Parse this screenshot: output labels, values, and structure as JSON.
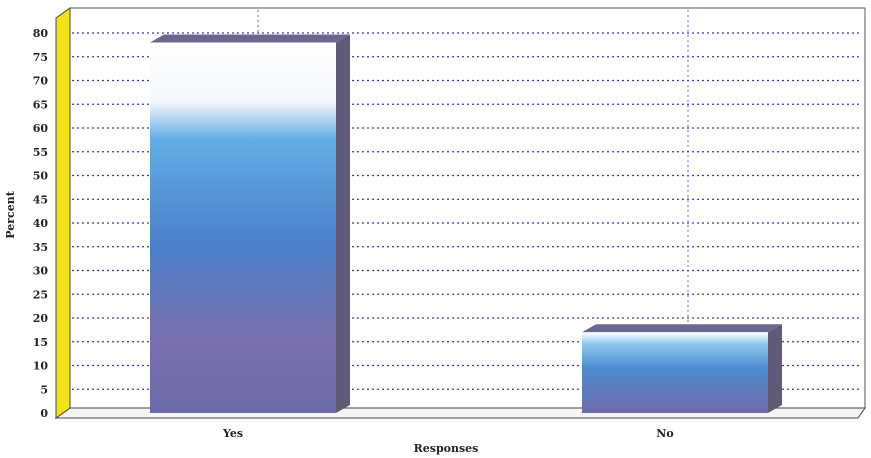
{
  "chart_data": {
    "type": "bar",
    "categories": [
      "Yes",
      "No"
    ],
    "values": [
      78,
      17
    ],
    "title": "",
    "xlabel": "Responses",
    "ylabel": "Percent",
    "ylim": [
      0,
      80
    ],
    "yticks": [
      0,
      5,
      10,
      15,
      20,
      25,
      30,
      35,
      40,
      45,
      50,
      55,
      60,
      65,
      70,
      75,
      80
    ],
    "grid": true,
    "legend": "none",
    "colors": {
      "bar_top": "#ffffff",
      "bar_mid": "#3f97dc",
      "bar_bottom": "#7a6fae",
      "bar_side": "#5e5a78",
      "wall_accent": "#f2e21a",
      "grid": "#3a3ab0"
    }
  }
}
